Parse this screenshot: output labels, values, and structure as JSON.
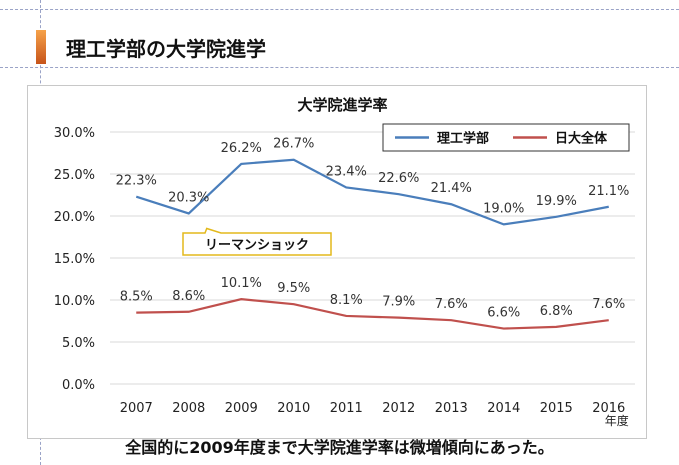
{
  "page": {
    "title": "理工学部の大学院進学",
    "caption": "全国的に2009年度まで大学院進学率は微増傾向にあった。"
  },
  "colors": {
    "series1": "#4a7ebb",
    "series2": "#c0504d",
    "callout_border": "#e3b91b",
    "accent": "#e07a2a"
  },
  "chart_data": {
    "type": "line",
    "title": "大学院進学率",
    "x": [
      "2007",
      "2008",
      "2009",
      "2010",
      "2011",
      "2012",
      "2013",
      "2014",
      "2015",
      "2016"
    ],
    "x_unit_label": "年度",
    "ylim": [
      0,
      30
    ],
    "y_ticks": [
      "0.0%",
      "5.0%",
      "10.0%",
      "15.0%",
      "20.0%",
      "25.0%",
      "30.0%"
    ],
    "grid": true,
    "legend_position": "top-right",
    "series": [
      {
        "name": "理工学部",
        "values": [
          22.3,
          20.3,
          26.2,
          26.7,
          23.4,
          22.6,
          21.4,
          19.0,
          19.9,
          21.1
        ],
        "labels": [
          "22.3%",
          "20.3%",
          "26.2%",
          "26.7%",
          "23.4%",
          "22.6%",
          "21.4%",
          "19.0%",
          "19.9%",
          "21.1%"
        ]
      },
      {
        "name": "日大全体",
        "values": [
          8.5,
          8.6,
          10.1,
          9.5,
          8.1,
          7.9,
          7.6,
          6.6,
          6.8,
          7.6
        ],
        "labels": [
          "8.5%",
          "8.6%",
          "10.1%",
          "9.5%",
          "8.1%",
          "7.9%",
          "7.6%",
          "6.6%",
          "6.8%",
          "7.6%"
        ]
      }
    ],
    "annotation": {
      "text": "リーマンショック",
      "points_to": "2008"
    }
  }
}
